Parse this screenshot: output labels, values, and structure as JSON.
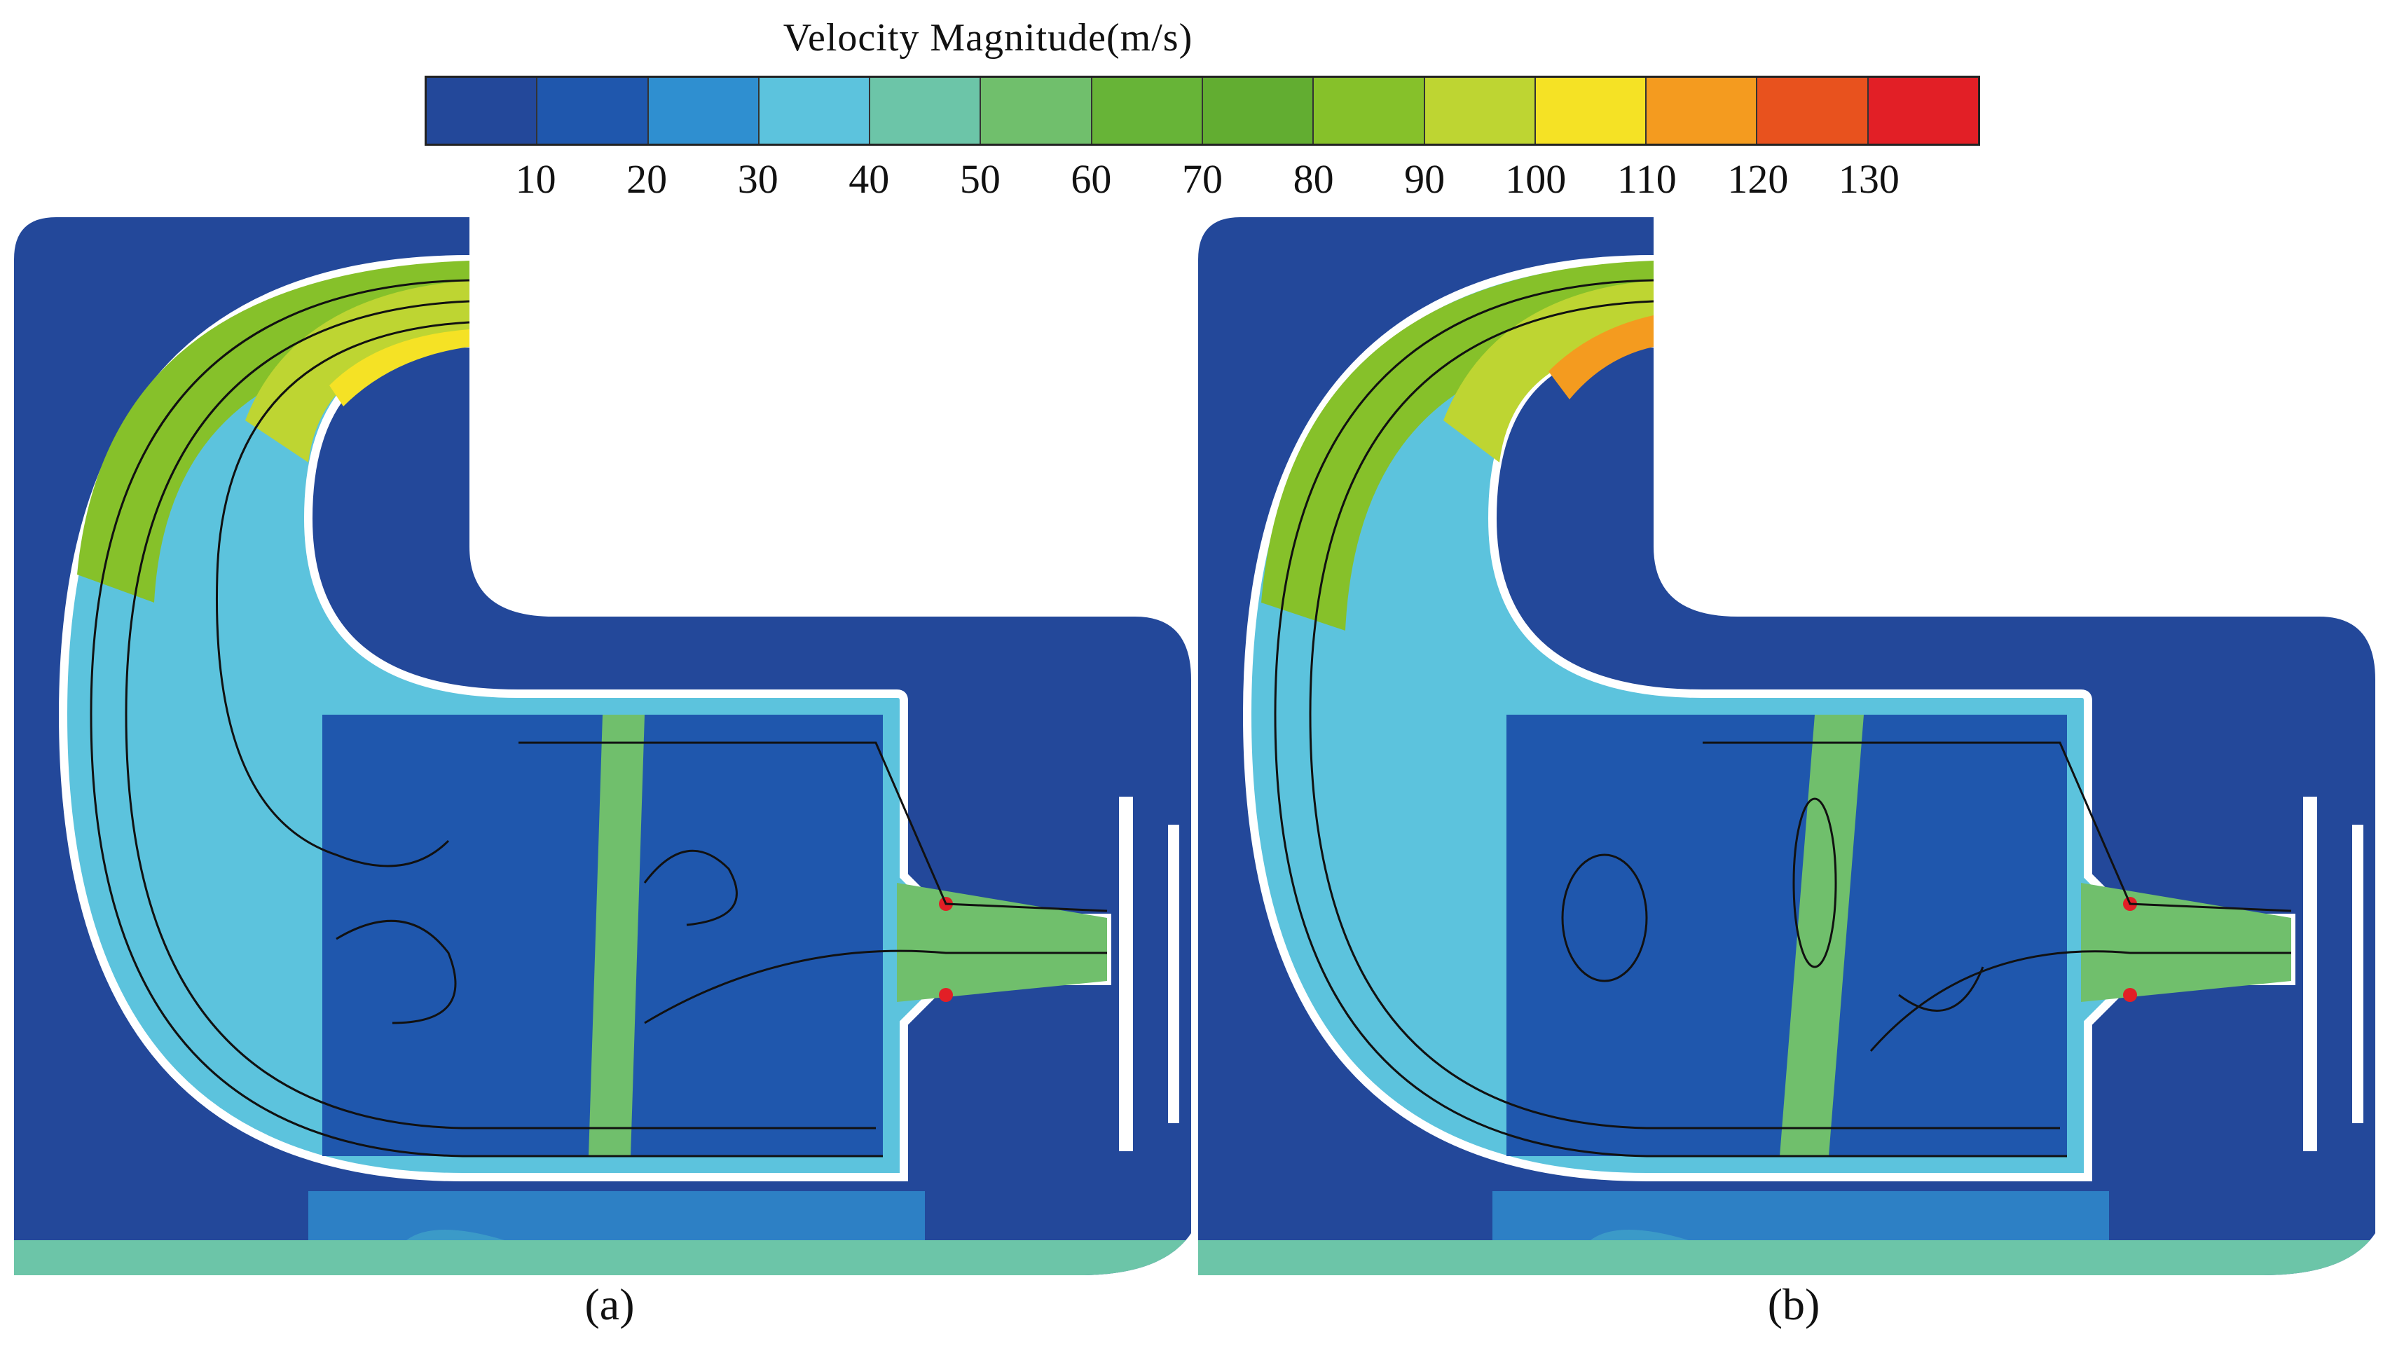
{
  "colorbar": {
    "title": "Velocity Magnitude(m/s)",
    "tick_labels": [
      "10",
      "20",
      "30",
      "40",
      "50",
      "60",
      "70",
      "80",
      "90",
      "100",
      "110",
      "120",
      "130"
    ],
    "colors": [
      "#23489a",
      "#1f57ad",
      "#2f8fd0",
      "#5cc3dd",
      "#6cc5a8",
      "#70bf6c",
      "#67b437",
      "#62ad31",
      "#86c12a",
      "#bed532",
      "#f5e225",
      "#f49b1f",
      "#e8521e",
      "#e21f26"
    ]
  },
  "panels": [
    {
      "label": "(a)"
    },
    {
      "label": "(b)"
    }
  ]
}
